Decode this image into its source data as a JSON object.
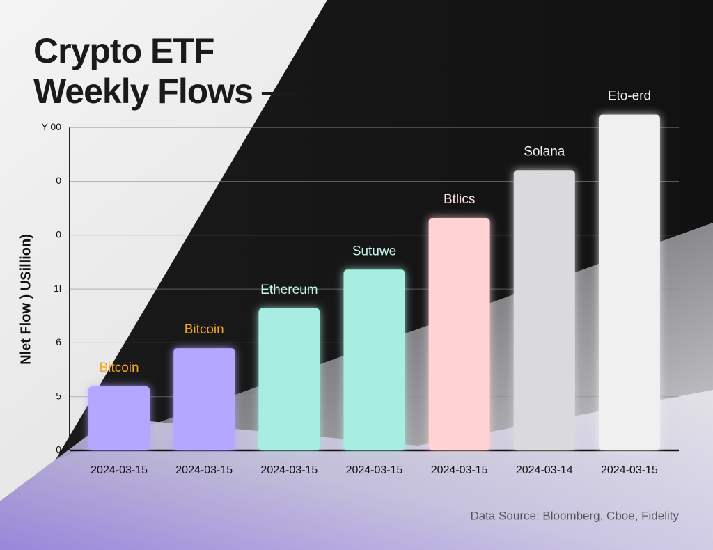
{
  "chart_data": {
    "type": "bar",
    "title": "Crypto ETF Weekly Flows —",
    "y_label": "Nlet Flow ) USillion)",
    "source": "Data Source: Bloomberg, Cboe, Fidelity",
    "categories": [
      "2024-03-15",
      "2024-03-15",
      "2024-03-15",
      "2024-03-15",
      "2024-03-15",
      "2024-03-14",
      "2024-03-15"
    ],
    "values": [
      1.19,
      1.9,
      2.64,
      3.36,
      4.32,
      5.21,
      6.24
    ],
    "bar_labels": [
      "Bitcoin",
      "Bitcoin",
      "Ethereum",
      "Sutuwe",
      "Btlics",
      "Solana",
      "Eto-erd"
    ],
    "colors": [
      "#b4a7ff",
      "#b4a7ff",
      "#a8ede1",
      "#a8ede1",
      "#ffd2d4",
      "#dadadd",
      "#f0f0f0"
    ],
    "label_colors": [
      "#f5a623",
      "#f5a623",
      "#c4f5ec",
      "#c4f5ec",
      "#fde2e2",
      "#f2f2f2",
      "#f2f2f2"
    ],
    "ylim": [
      0,
      6.3
    ],
    "yticks": [
      {
        "value": 0,
        "label": "0"
      },
      {
        "value": 1,
        "label": "5"
      },
      {
        "value": 2,
        "label": "6"
      },
      {
        "value": 3,
        "label": "1l"
      },
      {
        "value": 4,
        "label": "0"
      },
      {
        "value": 5,
        "label": "0"
      },
      {
        "value": 6,
        "label": "Y 00"
      }
    ],
    "grid": true
  }
}
